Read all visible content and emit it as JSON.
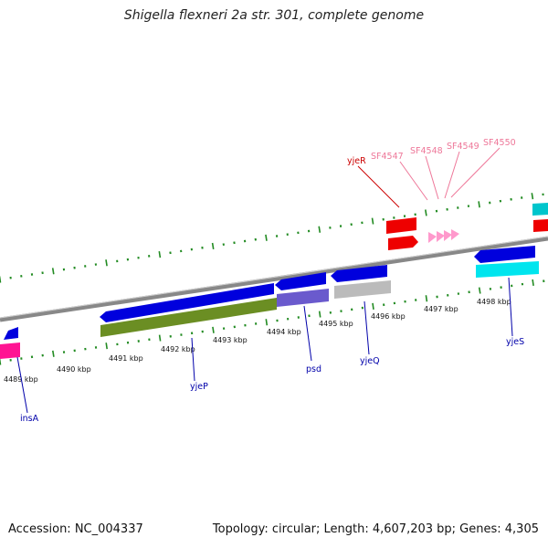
{
  "title": "Shigella flexneri 2a str. 301, complete genome",
  "footer": {
    "accession": "Accession: NC_004337",
    "summary": "Topology: circular; Length: 4,607,203 bp; Genes: 4,305"
  },
  "scale": {
    "unit": "kbp",
    "tick_labels": [
      "4489 kbp",
      "4490 kbp",
      "4491 kbp",
      "4492 kbp",
      "4493 kbp",
      "4494 kbp",
      "4495 kbp",
      "4496 kbp",
      "4497 kbp",
      "4498 kbp"
    ]
  },
  "gene_labels": {
    "insA": "insA",
    "yjeP": "yjeP",
    "psd": "psd",
    "yjeQ": "yjeQ",
    "yjeS": "yjeS",
    "yjeR": "yjeR",
    "SF4547": "SF4547",
    "SF4548": "SF4548",
    "SF4549": "SF4549",
    "SF4550": "SF4550"
  },
  "colors": {
    "cds_blue": "#0000dd",
    "olive": "#6b8e23",
    "slate": "#6a5acd",
    "grey": "#bbbbbb",
    "red": "#ee0000",
    "pink": "#ff99cc",
    "cyan": "#00e5ee",
    "magenta": "#ff1493",
    "backbone": "#888888",
    "tick_green": "#228b22",
    "label_blue": "#0000aa",
    "label_red": "#cc0000",
    "label_pink": "#ee7799"
  }
}
